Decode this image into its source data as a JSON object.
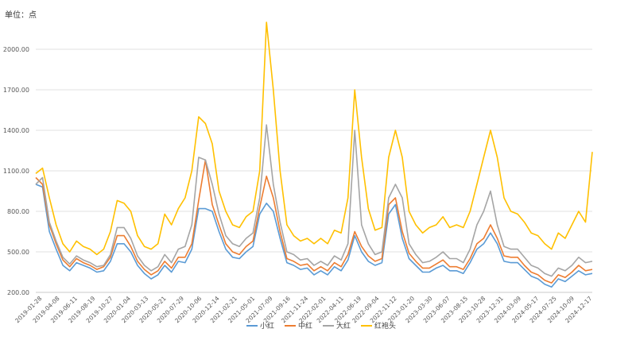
{
  "unit_label": "单位：点",
  "chart_data": {
    "type": "line",
    "ylim": [
      200,
      2200
    ],
    "y_ticks": [
      "200.00",
      "500.00",
      "800.00",
      "1100.00",
      "1400.00",
      "1700.00",
      "2000.00"
    ],
    "y_tick_values": [
      200,
      500,
      800,
      1100,
      1400,
      1700,
      2000
    ],
    "x_tick_labels": [
      "2019-01-28",
      "2019-04-08",
      "2019-06-11",
      "2019-08-19",
      "2019-10-27",
      "2020-01-04",
      "2020-03-13",
      "2020-05-21",
      "2020-07-29",
      "2020-10-06",
      "2020-12-14",
      "2021-02-21",
      "2021-05-01",
      "2021-07-09",
      "2021-09-16",
      "2021-11-24",
      "2022-02-01",
      "2022-04-11",
      "2022-06-19",
      "2022-09-04",
      "2022-11-12",
      "2023-01-20",
      "2023-03-30",
      "2023-06-07",
      "2023-08-15",
      "2023-10-28",
      "2023-12-31",
      "2024-03-09",
      "2024-05-17",
      "2024-07-25",
      "2024-10-09",
      "2024-12-17"
    ],
    "grid": true,
    "legend_position": "bottom",
    "series": [
      {
        "name": "小红",
        "color": "#5B9BD5",
        "values": [
          1000,
          980,
          650,
          520,
          400,
          360,
          420,
          400,
          380,
          350,
          360,
          430,
          560,
          560,
          500,
          400,
          340,
          300,
          330,
          400,
          350,
          430,
          420,
          520,
          820,
          820,
          800,
          650,
          520,
          460,
          450,
          500,
          540,
          780,
          860,
          800,
          600,
          420,
          400,
          370,
          380,
          330,
          360,
          330,
          390,
          360,
          440,
          620,
          500,
          430,
          400,
          420,
          780,
          850,
          600,
          450,
          400,
          350,
          350,
          380,
          400,
          360,
          360,
          340,
          420,
          520,
          560,
          640,
          560,
          430,
          420,
          420,
          370,
          320,
          300,
          260,
          240,
          300,
          280,
          320,
          360,
          330,
          340
        ]
      },
      {
        "name": "中红",
        "color": "#ED7D31",
        "values": [
          1050,
          1000,
          700,
          560,
          440,
          390,
          450,
          420,
          400,
          370,
          390,
          460,
          620,
          620,
          540,
          430,
          370,
          330,
          360,
          430,
          380,
          460,
          460,
          560,
          880,
          1180,
          850,
          700,
          560,
          500,
          480,
          540,
          580,
          830,
          1060,
          900,
          650,
          450,
          430,
          400,
          410,
          360,
          390,
          360,
          420,
          390,
          480,
          650,
          540,
          470,
          430,
          450,
          850,
          900,
          650,
          490,
          430,
          380,
          380,
          410,
          440,
          390,
          390,
          370,
          450,
          560,
          600,
          700,
          600,
          470,
          460,
          460,
          400,
          350,
          330,
          290,
          270,
          330,
          310,
          350,
          400,
          360,
          370
        ]
      },
      {
        "name": "大红",
        "color": "#A5A5A5",
        "values": [
          1000,
          1050,
          720,
          580,
          460,
          410,
          470,
          440,
          420,
          390,
          400,
          480,
          680,
          680,
          600,
          470,
          400,
          360,
          390,
          480,
          420,
          520,
          540,
          700,
          1200,
          1180,
          1000,
          780,
          620,
          560,
          540,
          600,
          640,
          900,
          1440,
          1000,
          720,
          500,
          480,
          440,
          450,
          400,
          430,
          400,
          470,
          440,
          560,
          1400,
          700,
          560,
          480,
          500,
          900,
          1000,
          900,
          560,
          480,
          420,
          430,
          460,
          500,
          450,
          450,
          420,
          520,
          700,
          800,
          950,
          700,
          540,
          520,
          520,
          460,
          400,
          380,
          340,
          320,
          380,
          360,
          400,
          460,
          420,
          430
        ]
      },
      {
        "name": "红袍头",
        "color": "#FFC000",
        "values": [
          1080,
          1120,
          900,
          700,
          560,
          500,
          580,
          540,
          520,
          480,
          520,
          650,
          880,
          860,
          800,
          620,
          540,
          520,
          560,
          780,
          700,
          820,
          900,
          1100,
          1500,
          1450,
          1300,
          950,
          800,
          700,
          680,
          760,
          800,
          1100,
          2200,
          1700,
          1100,
          700,
          620,
          580,
          600,
          560,
          600,
          560,
          660,
          640,
          900,
          1700,
          1200,
          820,
          660,
          680,
          1200,
          1400,
          1200,
          800,
          700,
          640,
          680,
          700,
          760,
          680,
          700,
          680,
          800,
          1000,
          1200,
          1400,
          1200,
          900,
          800,
          780,
          720,
          640,
          620,
          560,
          520,
          640,
          600,
          700,
          800,
          720,
          1240
        ]
      }
    ]
  }
}
